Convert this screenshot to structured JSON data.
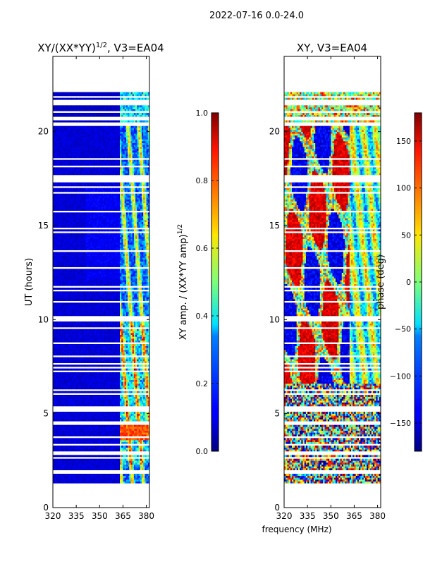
{
  "suptitle": "2022-07-16 0.0-24.0",
  "chart_data": [
    {
      "type": "heatmap",
      "title_main": "XY/(XX*YY)",
      "title_exp": "1/2",
      "title_rest": ", V3=EA04",
      "xlabel": "",
      "ylabel": "UT (hours)",
      "xlim": [
        320,
        382
      ],
      "ylim": [
        0,
        24
      ],
      "xticks": [
        320,
        335,
        350,
        365,
        380
      ],
      "yticks": [
        0,
        5,
        10,
        15,
        20
      ],
      "data_extent_hours": [
        1.3,
        22.1
      ],
      "description_values": "mostly low amplitude (~0.05) at 320-360 MHz; bright (0.4-0.8) vertical streaks around 363-382 MHz",
      "colorbar": {
        "label_main": "XY amp. / (XX*YY amp)",
        "label_exp": "1/2",
        "range": [
          0.0,
          1.0
        ],
        "ticks": [
          "0.0",
          "0.2",
          "0.4",
          "0.6",
          "0.8",
          "1.0"
        ],
        "tick_values": [
          0.0,
          0.2,
          0.4,
          0.6,
          0.8,
          1.0
        ],
        "colormap": "jet"
      }
    },
    {
      "type": "heatmap",
      "title_main": "XY, V3=EA04",
      "xlabel": "frequency (MHz)",
      "ylabel": "",
      "xlim": [
        320,
        382
      ],
      "ylim": [
        0,
        24
      ],
      "xticks": [
        320,
        335,
        350,
        365,
        380
      ],
      "yticks": [
        0,
        5,
        10,
        15,
        20
      ],
      "data_extent_hours": [
        1.3,
        22.1
      ],
      "colorbar": {
        "label_main": "phase (deg)",
        "range": [
          -180,
          180
        ],
        "ticks": [
          "150",
          "100",
          "50",
          "0",
          "−50",
          "−100",
          "−150"
        ],
        "tick_values": [
          150,
          100,
          50,
          0,
          -50,
          -100,
          -150
        ],
        "colormap": "jet"
      }
    }
  ]
}
